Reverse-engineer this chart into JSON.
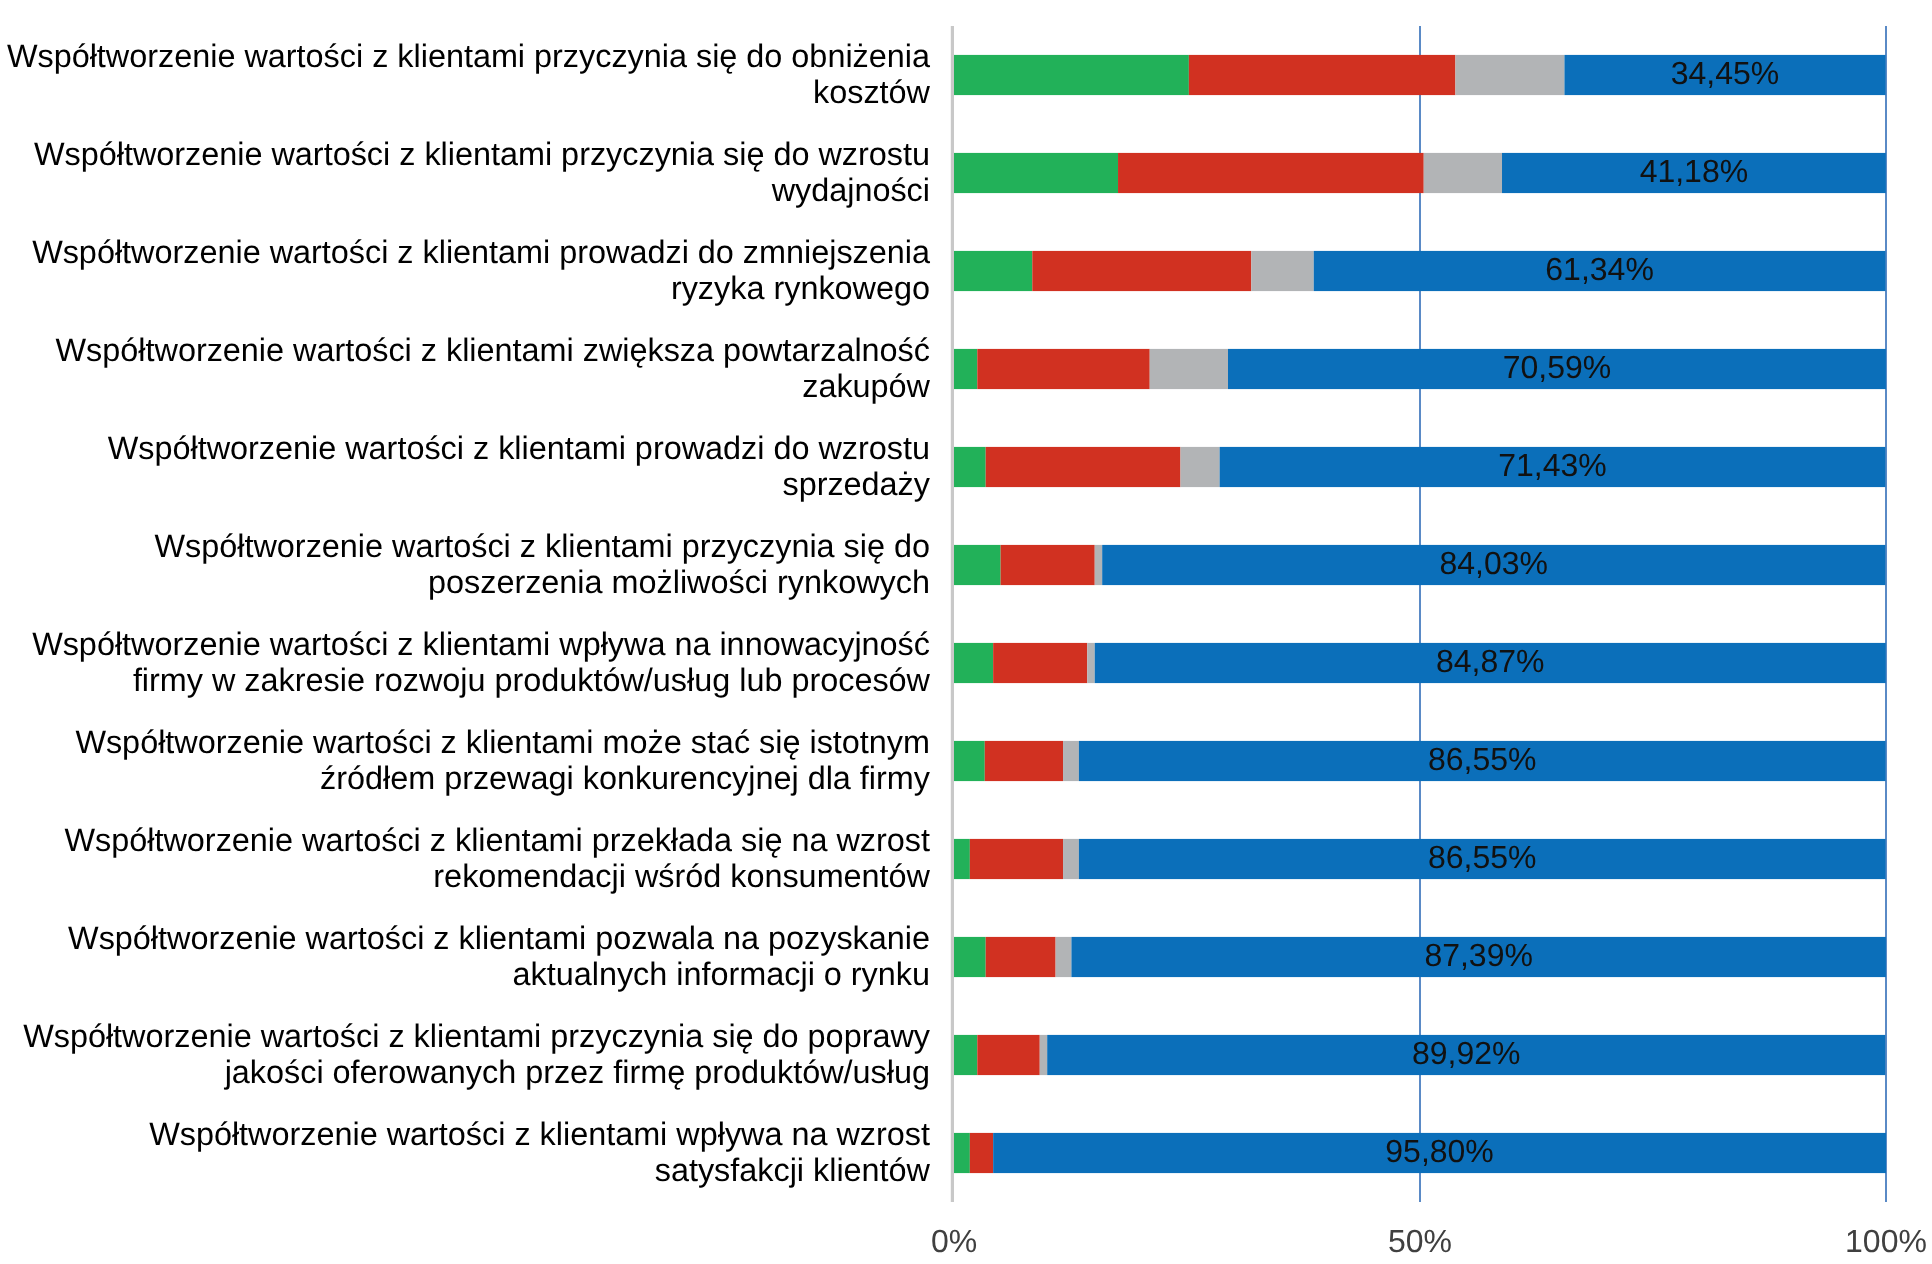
{
  "chart_data": {
    "type": "bar",
    "orientation": "horizontal",
    "stacked": true,
    "categories": [
      "Współtworzenie wartości z klientami przyczynia się do obniżenia kosztów",
      "Współtworzenie wartości z klientami przyczynia się do wzrostu wydajności",
      "Współtworzenie wartości z klientami prowadzi do zmniejszenia ryzyka rynkowego",
      "Współtworzenie wartości z klientami zwiększa powtarzalność zakupów",
      "Współtworzenie wartości z klientami prowadzi do wzrostu sprzedaży",
      "Współtworzenie wartości z klientami przyczynia się do poszerzenia możliwości rynkowych",
      "Współtworzenie wartości z klientami wpływa na innowacyjność firmy w zakresie rozwoju produktów/usług lub procesów",
      "Współtworzenie wartości z klientami może stać się istotnym źródłem przewagi konkurencyjnej dla firmy",
      "Współtworzenie wartości z klientami przekłada się na wzrost rekomendacji wśród konsumentów",
      "Współtworzenie wartości z klientami pozwala na pozyskanie aktualnych informacji o rynku",
      "Współtworzenie wartości z klientami przyczynia się do poprawy jakości oferowanych przez firmę produktów/usług",
      "Współtworzenie wartości z klientami wpływa na wzrost satysfakcji klientów"
    ],
    "series": [
      {
        "color": "#22b159",
        "values": [
          25.2,
          17.6,
          8.4,
          2.5,
          3.4,
          5.0,
          4.2,
          3.3,
          1.7,
          3.4,
          2.5,
          1.7
        ]
      },
      {
        "color": "#d13121",
        "values": [
          28.6,
          32.8,
          23.5,
          18.5,
          20.9,
          10.1,
          10.1,
          8.4,
          10.0,
          7.5,
          6.7,
          2.5
        ]
      },
      {
        "color": "#b2b4b6",
        "values": [
          11.7,
          8.4,
          6.7,
          8.4,
          4.2,
          0.8,
          0.8,
          1.7,
          1.7,
          1.7,
          0.8,
          null
        ]
      },
      {
        "color": "#0b6fba",
        "values": [
          34.45,
          41.18,
          61.34,
          70.59,
          71.43,
          84.03,
          84.87,
          86.55,
          86.55,
          87.39,
          89.92,
          95.8
        ],
        "value_labels": [
          "34,45%",
          "41,18%",
          "61,34%",
          "70,59%",
          "71,43%",
          "84,03%",
          "84,87%",
          "86,55%",
          "86,55%",
          "87,39%",
          "89,92%",
          "95,80%"
        ]
      }
    ],
    "xlim": [
      0,
      100
    ],
    "xticks": [
      {
        "value": 0,
        "label": "0%"
      },
      {
        "value": 50,
        "label": "50%"
      },
      {
        "value": 100,
        "label": "100%"
      }
    ],
    "ref_lines": [
      {
        "axis": "x",
        "value": 50,
        "color": "#5a8ac6"
      },
      {
        "axis": "x",
        "value": 100,
        "color": "#5a8ac6"
      }
    ]
  }
}
